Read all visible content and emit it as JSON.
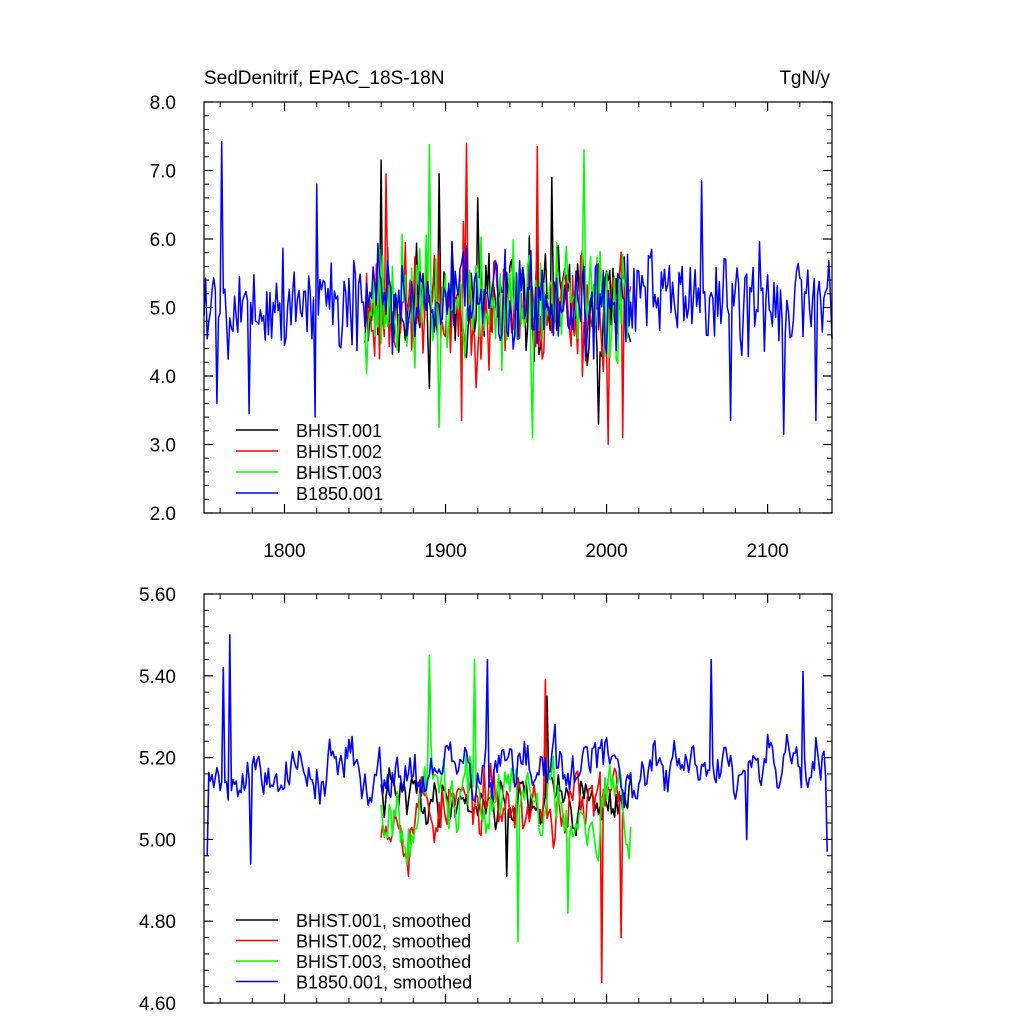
{
  "chart_data": [
    {
      "type": "line",
      "title_left": "SedDenitrif, EPAC_18S-18N",
      "title_right": "TgN/y",
      "xlabel": "",
      "ylabel": "",
      "xlim": [
        1750,
        2140
      ],
      "ylim": [
        2.0,
        8.0
      ],
      "x_ticks": [
        1800,
        1900,
        2000,
        2100
      ],
      "x_tick_labels": [
        "1800",
        "1900",
        "2000",
        "2100"
      ],
      "y_ticks": [
        2.0,
        3.0,
        4.0,
        5.0,
        6.0,
        7.0,
        8.0
      ],
      "y_tick_labels": [
        "2.0",
        "3.0",
        "4.0",
        "5.0",
        "6.0",
        "7.0",
        "8.0"
      ],
      "legend_position": "bottom-left",
      "series": [
        {
          "name": "BHIST.001",
          "color": "#000000",
          "start": 1850,
          "end": 2015,
          "seed": 11,
          "mean": 5.05,
          "spread": 1.0,
          "min": 3.3,
          "max": 7.2,
          "peaks": [
            [
              1860,
              7.15
            ],
            [
              1896,
              6.95
            ],
            [
              1920,
              6.6
            ],
            [
              1966,
              6.9
            ],
            [
              1995,
              3.3
            ]
          ]
        },
        {
          "name": "BHIST.002",
          "color": "#ff0000",
          "start": 1850,
          "end": 2015,
          "seed": 23,
          "mean": 5.0,
          "spread": 1.0,
          "min": 3.0,
          "max": 7.4,
          "peaks": [
            [
              1913,
              7.4
            ],
            [
              1957,
              7.35
            ],
            [
              1863,
              6.95
            ],
            [
              2001,
              3.0
            ],
            [
              2010,
              3.1
            ],
            [
              1910,
              3.35
            ]
          ]
        },
        {
          "name": "BHIST.003",
          "color": "#00ff00",
          "start": 1850,
          "end": 2015,
          "seed": 37,
          "mean": 5.05,
          "spread": 1.0,
          "min": 3.1,
          "max": 7.4,
          "peaks": [
            [
              1890,
              7.38
            ],
            [
              1986,
              7.3
            ],
            [
              1954,
              3.1
            ],
            [
              1896,
              3.25
            ]
          ]
        },
        {
          "name": "B1850.001",
          "color": "#0000ff",
          "start": 1750,
          "end": 2140,
          "seed": 5,
          "mean": 5.1,
          "spread": 0.85,
          "min": 3.1,
          "max": 7.45,
          "peaks": [
            [
              1761,
              7.42
            ],
            [
              1820,
              6.8
            ],
            [
              1758,
              3.6
            ],
            [
              1778,
              3.45
            ],
            [
              1819,
              3.4
            ],
            [
              2059,
              6.85
            ],
            [
              2110,
              3.15
            ],
            [
              2130,
              3.35
            ],
            [
              2077,
              3.35
            ]
          ]
        }
      ]
    },
    {
      "type": "line",
      "title_left": "",
      "title_right": "",
      "xlabel": "",
      "ylabel": "",
      "xlim": [
        1750,
        2140
      ],
      "ylim": [
        4.6,
        5.6
      ],
      "x_ticks": [
        1800,
        1900,
        2000,
        2100
      ],
      "x_tick_labels": [
        "",
        "",
        "",
        ""
      ],
      "y_ticks": [
        4.6,
        4.8,
        5.0,
        5.2,
        5.4,
        5.6
      ],
      "y_tick_labels": [
        "4.60",
        "4.80",
        "5.00",
        "5.20",
        "5.40",
        "5.60"
      ],
      "legend_position": "bottom-left",
      "series": [
        {
          "name": "BHIST.001, smoothed",
          "color": "#000000",
          "start": 1860,
          "end": 2015,
          "seed": 41,
          "mean": 5.1,
          "spread": 0.09,
          "min": 4.9,
          "max": 5.35,
          "peaks": [
            [
              1963,
              5.35
            ],
            [
              1938,
              4.91
            ]
          ]
        },
        {
          "name": "BHIST.002, smoothed",
          "color": "#ff0000",
          "start": 1860,
          "end": 2010,
          "seed": 53,
          "mean": 5.08,
          "spread": 0.12,
          "min": 4.65,
          "max": 5.39,
          "peaks": [
            [
              1962,
              5.39
            ],
            [
              1997,
              4.65
            ],
            [
              2009,
              4.76
            ],
            [
              1877,
              4.91
            ]
          ]
        },
        {
          "name": "BHIST.003, smoothed",
          "color": "#00ff00",
          "start": 1860,
          "end": 2015,
          "seed": 67,
          "mean": 5.1,
          "spread": 0.14,
          "min": 4.75,
          "max": 5.45,
          "peaks": [
            [
              1890,
              5.45
            ],
            [
              1918,
              5.44
            ],
            [
              1945,
              4.75
            ],
            [
              1976,
              4.82
            ]
          ]
        },
        {
          "name": "B1850.001, smoothed",
          "color": "#0000ff",
          "start": 1752,
          "end": 2137,
          "seed": 79,
          "mean": 5.17,
          "spread": 0.1,
          "min": 4.94,
          "max": 5.5,
          "peaks": [
            [
              1766,
              5.5
            ],
            [
              1762,
              5.42
            ],
            [
              1779,
              4.94
            ],
            [
              1752,
              4.96
            ],
            [
              1926,
              5.44
            ],
            [
              2065,
              5.44
            ],
            [
              2122,
              5.41
            ],
            [
              2137,
              4.97
            ],
            [
              2087,
              5.0
            ]
          ]
        }
      ]
    }
  ]
}
